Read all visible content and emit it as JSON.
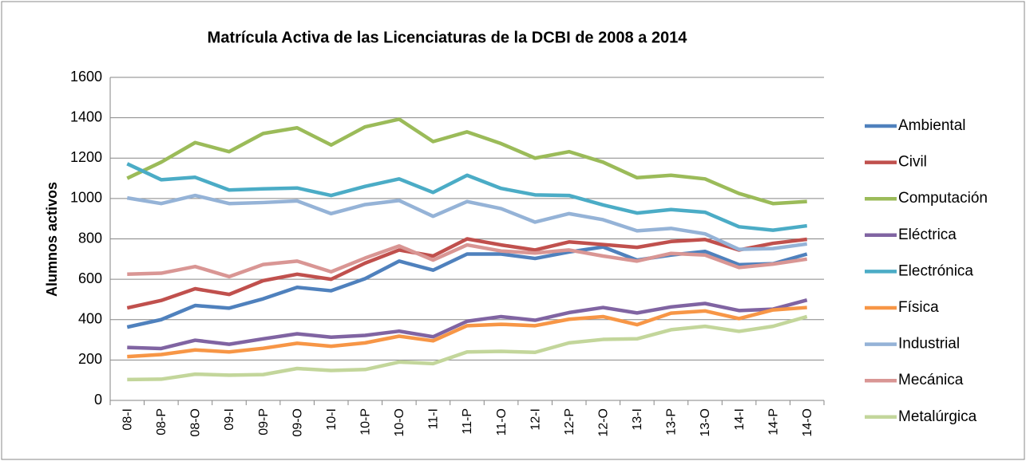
{
  "chart_data": {
    "type": "line",
    "title": "Matrícula Activa de las Licenciaturas de la DCBI de 2008 a 2014",
    "y_label": "Alumnos activos",
    "categories": [
      "08-I",
      "08-P",
      "08-O",
      "09-I",
      "09-P",
      "09-O",
      "10-I",
      "10-P",
      "10-O",
      "11-I",
      "11-P",
      "11-O",
      "12-I",
      "12-P",
      "12-O",
      "13-I",
      "13-P",
      "13-O",
      "14-I",
      "14-P",
      "14-O"
    ],
    "series": [
      {
        "name": "Ambiental",
        "color": "#4f81bd",
        "values": [
          363,
          400,
          470,
          457,
          503,
          560,
          543,
          603,
          690,
          645,
          725,
          725,
          703,
          735,
          760,
          695,
          720,
          738,
          672,
          677,
          725
        ]
      },
      {
        "name": "Civil",
        "color": "#c0504d",
        "values": [
          458,
          495,
          553,
          525,
          593,
          625,
          600,
          680,
          745,
          715,
          800,
          770,
          745,
          785,
          772,
          758,
          787,
          797,
          745,
          778,
          798
        ]
      },
      {
        "name": "Computación",
        "color": "#9bbb59",
        "values": [
          1100,
          1180,
          1277,
          1232,
          1322,
          1350,
          1265,
          1355,
          1393,
          1282,
          1330,
          1272,
          1200,
          1232,
          1180,
          1103,
          1115,
          1097,
          1025,
          975,
          985
        ]
      },
      {
        "name": "Eléctrica",
        "color": "#8064a2",
        "values": [
          262,
          257,
          298,
          278,
          305,
          330,
          313,
          322,
          343,
          315,
          392,
          415,
          397,
          435,
          460,
          433,
          463,
          480,
          445,
          452,
          497
        ]
      },
      {
        "name": "Electrónica",
        "color": "#4bacc6",
        "values": [
          1172,
          1093,
          1105,
          1042,
          1048,
          1052,
          1015,
          1060,
          1097,
          1030,
          1115,
          1050,
          1018,
          1015,
          968,
          928,
          945,
          932,
          860,
          843,
          865
        ]
      },
      {
        "name": "Física",
        "color": "#f79646",
        "values": [
          217,
          227,
          250,
          240,
          258,
          283,
          268,
          285,
          318,
          295,
          370,
          377,
          370,
          402,
          415,
          375,
          432,
          443,
          405,
          448,
          460
        ]
      },
      {
        "name": "Industrial",
        "color": "#95b3d7",
        "values": [
          1003,
          975,
          1015,
          975,
          980,
          988,
          925,
          970,
          990,
          912,
          985,
          950,
          883,
          925,
          895,
          840,
          852,
          825,
          748,
          752,
          775
        ]
      },
      {
        "name": "Mecánica",
        "color": "#d99694",
        "values": [
          625,
          630,
          663,
          613,
          673,
          690,
          637,
          705,
          765,
          695,
          770,
          740,
          730,
          745,
          715,
          690,
          728,
          720,
          658,
          675,
          700
        ]
      },
      {
        "name": "Metalúrgica",
        "color": "#c3d69b",
        "values": [
          103,
          105,
          130,
          125,
          128,
          158,
          148,
          153,
          190,
          182,
          240,
          243,
          238,
          285,
          302,
          305,
          350,
          367,
          342,
          367,
          415
        ]
      }
    ],
    "ylim": [
      0,
      1600
    ],
    "yticks": [
      0,
      200,
      400,
      600,
      800,
      1000,
      1200,
      1400,
      1600
    ],
    "grid": true
  }
}
